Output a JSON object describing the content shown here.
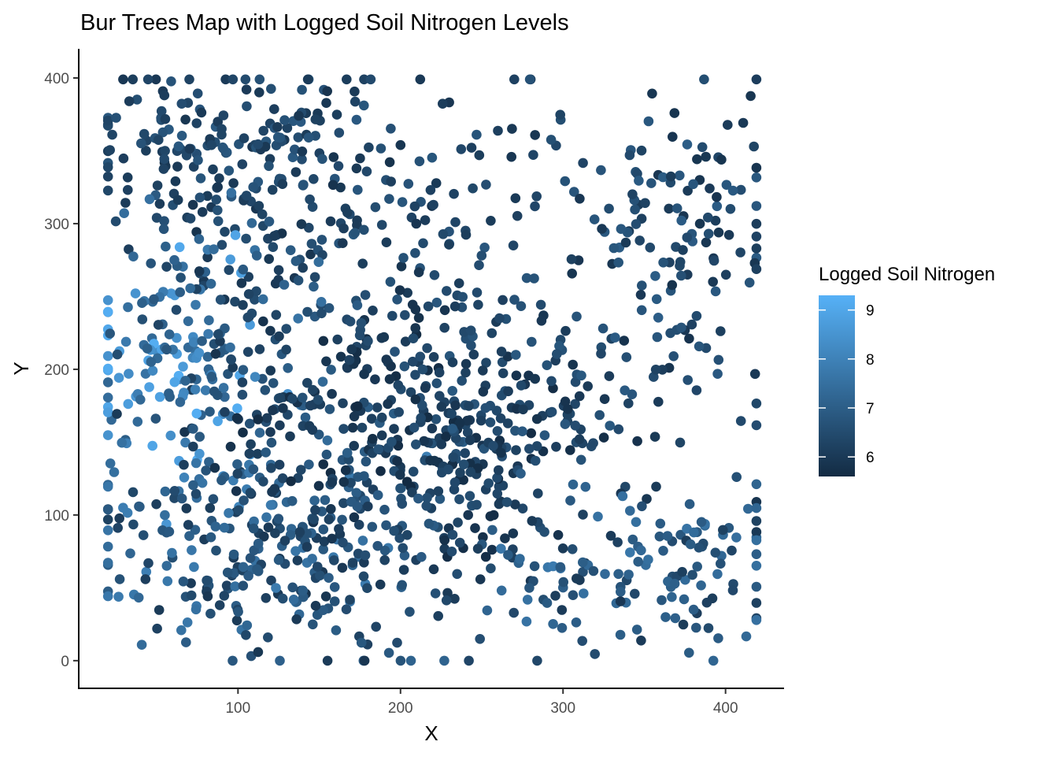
{
  "chart_data": {
    "type": "scatter",
    "title": "Bur Trees Map with Logged Soil Nitrogen Levels",
    "xlabel": "X",
    "ylabel": "Y",
    "xlim": [
      2,
      436
    ],
    "ylim": [
      -19,
      420
    ],
    "x_ticks": [
      100,
      200,
      300,
      400
    ],
    "y_ticks": [
      0,
      100,
      200,
      300,
      400
    ],
    "grid": false,
    "legend": {
      "title": "Logged Soil Nitrogen",
      "position": "right",
      "range": [
        5.6,
        9.3
      ],
      "ticks": [
        6,
        7,
        8,
        9
      ],
      "color_low": "#132B43",
      "color_high": "#56B1F7"
    },
    "point_color": {
      "low": "#132B43",
      "high": "#56B1F7"
    },
    "approximate_point_count": 1540,
    "clusters": [
      {
        "cx": 85,
        "cy": 360,
        "sx": 45,
        "sy": 30,
        "n": 150,
        "cmin": 5.9,
        "cmax": 6.9
      },
      {
        "cx": 160,
        "cy": 300,
        "sx": 60,
        "sy": 50,
        "n": 130,
        "cmin": 5.8,
        "cmax": 6.8
      },
      {
        "cx": 60,
        "cy": 200,
        "sx": 30,
        "sy": 45,
        "n": 110,
        "cmin": 7.0,
        "cmax": 9.2
      },
      {
        "cx": 100,
        "cy": 240,
        "sx": 45,
        "sy": 45,
        "n": 110,
        "cmin": 6.0,
        "cmax": 7.6
      },
      {
        "cx": 100,
        "cy": 75,
        "sx": 45,
        "sy": 35,
        "n": 170,
        "cmin": 6.0,
        "cmax": 7.9
      },
      {
        "cx": 160,
        "cy": 110,
        "sx": 50,
        "sy": 50,
        "n": 180,
        "cmin": 5.8,
        "cmax": 7.0
      },
      {
        "cx": 200,
        "cy": 180,
        "sx": 50,
        "sy": 40,
        "n": 170,
        "cmin": 5.6,
        "cmax": 6.7
      },
      {
        "cx": 250,
        "cy": 140,
        "sx": 35,
        "sy": 35,
        "n": 110,
        "cmin": 5.6,
        "cmax": 6.6
      },
      {
        "cx": 300,
        "cy": 190,
        "sx": 55,
        "sy": 35,
        "n": 110,
        "cmin": 5.8,
        "cmax": 6.9
      },
      {
        "cx": 380,
        "cy": 300,
        "sx": 30,
        "sy": 45,
        "n": 110,
        "cmin": 5.8,
        "cmax": 7.0
      },
      {
        "cx": 390,
        "cy": 60,
        "sx": 30,
        "sy": 35,
        "n": 70,
        "cmin": 5.9,
        "cmax": 7.6
      },
      {
        "cx": 320,
        "cy": 60,
        "sx": 40,
        "sy": 30,
        "n": 60,
        "cmin": 5.9,
        "cmax": 7.8
      },
      {
        "cx": 230,
        "cy": 320,
        "sx": 70,
        "sy": 45,
        "n": 60,
        "cmin": 5.8,
        "cmax": 6.8
      },
      {
        "cx": 210,
        "cy": 50,
        "sx": 60,
        "sy": 30,
        "n": 60,
        "cmin": 5.9,
        "cmax": 7.2
      }
    ],
    "seed": 20240611
  }
}
